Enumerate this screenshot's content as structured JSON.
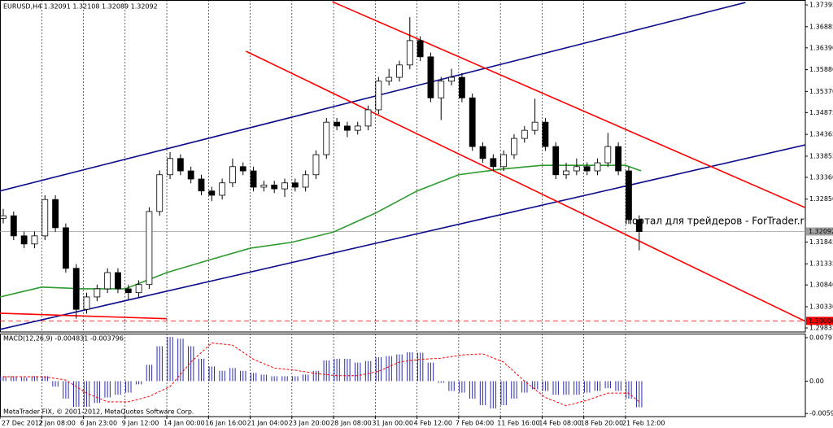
{
  "chart_data": [
    {
      "type": "candlestick",
      "title": "EURUSD,H4  1.32091 1.32108 1.32089 1.32092",
      "x": [
        0,
        4,
        8,
        12,
        16,
        20,
        24,
        28,
        32,
        36,
        40,
        44,
        48,
        52,
        56,
        60,
        64,
        68,
        72,
        76,
        80,
        84,
        88,
        92,
        96,
        100,
        104,
        108,
        112,
        116,
        120,
        124,
        128,
        132,
        136,
        140,
        144,
        148,
        152,
        156,
        160,
        164,
        168,
        172,
        176,
        180,
        184,
        188,
        192,
        196,
        200,
        204,
        208,
        212,
        216,
        220,
        224,
        228,
        232,
        236,
        240,
        244
      ],
      "open": [
        1.324,
        1.3246,
        1.3199,
        1.318,
        1.3199,
        1.3284,
        1.3218,
        1.3123,
        1.3027,
        1.3056,
        1.3075,
        1.3113,
        1.3075,
        1.3066,
        1.3085,
        1.3256,
        1.3342,
        1.338,
        1.3351,
        1.3332,
        1.3304,
        1.3294,
        1.3323,
        1.3361,
        1.3351,
        1.3313,
        1.3318,
        1.3309,
        1.3323,
        1.3313,
        1.3342,
        1.3389,
        1.3465,
        1.3456,
        1.3446,
        1.3456,
        1.3494,
        1.3561,
        1.357,
        1.3599,
        1.3656,
        1.3618,
        1.3522,
        1.3561,
        1.357,
        1.3522,
        1.3408,
        1.338,
        1.3361,
        1.3389,
        1.3427,
        1.3446,
        1.3465,
        1.3408,
        1.3342,
        1.3351,
        1.3361,
        1.3351,
        1.337,
        1.3408,
        1.3351,
        1.3237
      ],
      "high": [
        1.3262,
        1.3256,
        1.3209,
        1.3209,
        1.3294,
        1.3294,
        1.3228,
        1.3133,
        1.3066,
        1.3085,
        1.3123,
        1.3123,
        1.3085,
        1.3095,
        1.3266,
        1.3352,
        1.3395,
        1.339,
        1.3361,
        1.3342,
        1.3314,
        1.3333,
        1.338,
        1.3371,
        1.3361,
        1.3328,
        1.3328,
        1.3333,
        1.3333,
        1.3352,
        1.3399,
        1.3475,
        1.3475,
        1.3466,
        1.3466,
        1.3504,
        1.3571,
        1.359,
        1.3609,
        1.3711,
        1.3666,
        1.3628,
        1.3571,
        1.359,
        1.358,
        1.3532,
        1.3418,
        1.339,
        1.3399,
        1.3437,
        1.3456,
        1.352,
        1.3475,
        1.3418,
        1.337,
        1.338,
        1.3371,
        1.338,
        1.344,
        1.3418,
        1.3361,
        1.3247
      ],
      "low": [
        1.3228,
        1.3189,
        1.317,
        1.317,
        1.3189,
        1.3208,
        1.3113,
        1.3005,
        1.3017,
        1.3046,
        1.3065,
        1.3065,
        1.305,
        1.3056,
        1.3075,
        1.3246,
        1.3332,
        1.3341,
        1.3322,
        1.3294,
        1.328,
        1.3284,
        1.3313,
        1.3341,
        1.3303,
        1.3303,
        1.3299,
        1.329,
        1.3303,
        1.3303,
        1.3332,
        1.3379,
        1.3446,
        1.343,
        1.3436,
        1.3446,
        1.3484,
        1.3551,
        1.356,
        1.3589,
        1.3608,
        1.3512,
        1.347,
        1.3551,
        1.3512,
        1.3398,
        1.337,
        1.3351,
        1.3351,
        1.3379,
        1.3417,
        1.3436,
        1.3398,
        1.3332,
        1.3332,
        1.3341,
        1.3341,
        1.3341,
        1.336,
        1.3341,
        1.3227,
        1.3165
      ],
      "close": [
        1.3246,
        1.3199,
        1.318,
        1.3199,
        1.3284,
        1.3218,
        1.3123,
        1.3027,
        1.3056,
        1.3075,
        1.3113,
        1.3075,
        1.3066,
        1.3085,
        1.3256,
        1.3342,
        1.338,
        1.3351,
        1.3332,
        1.3304,
        1.3294,
        1.3323,
        1.3361,
        1.3351,
        1.3313,
        1.3318,
        1.3309,
        1.3323,
        1.3313,
        1.3342,
        1.3389,
        1.3465,
        1.3456,
        1.3446,
        1.3456,
        1.3494,
        1.3561,
        1.357,
        1.3599,
        1.3656,
        1.3618,
        1.3522,
        1.3561,
        1.357,
        1.3522,
        1.3408,
        1.338,
        1.3361,
        1.3389,
        1.3427,
        1.3446,
        1.3465,
        1.3408,
        1.3342,
        1.3351,
        1.3361,
        1.3351,
        1.337,
        1.3408,
        1.3351,
        1.3237,
        1.3209
      ],
      "color": "#000000",
      "xlim": [
        0,
        309
      ],
      "ylim": [
        1.2974,
        1.3751
      ],
      "yticks": [
        1.37395,
        1.36885,
        {
          "value": 1.3639,
          "label": "1.36390"
        },
        {
          "value": 1.3588,
          "label": "1.35880"
        },
        {
          "value": 1.3537,
          "label": "1.35370"
        },
        1.34875,
        1.34365,
        1.33855,
        {
          "value": 1.3336,
          "label": "1.33360"
        },
        {
          "value": 1.3285,
          "label": "1.32850"
        },
        1.31845,
        1.31335,
        {
          "value": 1.3084,
          "label": "1.30840"
        },
        {
          "value": 1.3033,
          "label": "1.30330"
        },
        1.29835
      ],
      "xticks": [
        {
          "value": 0,
          "label": "27 Dec 2012"
        },
        {
          "value": 16,
          "label": "2 Jan 08:00"
        },
        {
          "value": 32,
          "label": "6 Jan 23:00"
        },
        {
          "value": 48,
          "label": "9 Jan 12:00"
        },
        {
          "value": 64,
          "label": "14 Jan 00:00"
        },
        {
          "value": 80,
          "label": "16 Jan 16:00"
        },
        {
          "value": 96,
          "label": "21 Jan 04:00"
        },
        {
          "value": 112,
          "label": "23 Jan 20:00"
        },
        {
          "value": 128,
          "label": "28 Jan 08:00"
        },
        {
          "value": 144,
          "label": "31 Jan 00:00"
        },
        {
          "value": 160,
          "label": "4 Feb 12:00"
        },
        {
          "value": 176,
          "label": "7 Feb 04:00"
        },
        {
          "value": 192,
          "label": "11 Feb 16:00"
        },
        {
          "value": 208,
          "label": "14 Feb 08:00"
        },
        {
          "value": 224,
          "label": "18 Feb 20:00"
        },
        {
          "value": 240,
          "label": "21 Feb 12:00"
        }
      ],
      "grid": "x",
      "moving_average": {
        "color": "#2e9a2e",
        "x": [
          0,
          16,
          32,
          48,
          64,
          80,
          96,
          112,
          128,
          144,
          160,
          176,
          192,
          208,
          224,
          240,
          246
        ],
        "values": [
          1.3056,
          1.3079,
          1.3075,
          1.3075,
          1.3113,
          1.3142,
          1.317,
          1.3184,
          1.3208,
          1.3252,
          1.3304,
          1.3342,
          1.3355,
          1.3364,
          1.3364,
          1.3364,
          1.3351
        ]
      },
      "trendlines": [
        {
          "color": "#0c0c8c",
          "x": [
            0,
            286
          ],
          "y": [
            1.3304,
            1.37452
          ]
        },
        {
          "color": "#0c0c8c",
          "x": [
            0,
            309
          ],
          "y": [
            1.298,
            1.3412
          ]
        },
        {
          "color": "#ff0000",
          "x": [
            127.5,
            309
          ],
          "y": [
            1.37471,
            1.3265
          ]
        },
        {
          "color": "#ff0000",
          "x": [
            94.4,
            309
          ],
          "y": [
            1.3631,
            1.2999
          ]
        },
        {
          "color": "#ff0000",
          "x": [
            0,
            64
          ],
          "y": [
            1.3018,
            1.3005
          ]
        }
      ],
      "price_lines": [
        {
          "value": 1.32092,
          "label": "1.32092",
          "color": "#a0a0a0"
        },
        {
          "value": 1.3,
          "label": "1.30000",
          "color": "#ff0000"
        }
      ],
      "watermark": "Портал для трейдеров - ForTrader.ru",
      "footer": "MetaTrader FIX, © 2001-2012, MetaQuotes Software Corp."
    },
    {
      "type": "macd",
      "title": "MACD(12,26,9) -0.004831 -0.003796",
      "xlim": [
        0,
        309
      ],
      "ylim": [
        -0.0065,
        0.008714
      ],
      "yticks": [
        0.007975,
        {
          "value": 0,
          "label": "0.00"
        },
        -0.005936
      ],
      "histogram": {
        "color": "#2b2bb0",
        "x": [
          0,
          4,
          8,
          12,
          16,
          20,
          24,
          28,
          32,
          36,
          40,
          44,
          48,
          52,
          56,
          60,
          64,
          68,
          72,
          76,
          80,
          84,
          88,
          92,
          96,
          100,
          104,
          108,
          112,
          116,
          120,
          124,
          128,
          132,
          136,
          140,
          144,
          148,
          152,
          156,
          160,
          164,
          168,
          172,
          176,
          180,
          184,
          188,
          192,
          196,
          200,
          204,
          208,
          212,
          216,
          220,
          224,
          228,
          232,
          236,
          240,
          244
        ],
        "values": [
          0.0009,
          0.0009,
          0.0007,
          0.0009,
          0.0009,
          -0.001,
          -0.0032,
          -0.0047,
          -0.0047,
          -0.004,
          -0.003,
          -0.0025,
          -0.0021,
          -0.0006,
          0.003,
          0.0064,
          0.0081,
          0.0078,
          0.0064,
          0.0041,
          0.0027,
          0.0019,
          0.0024,
          0.0019,
          0.0015,
          0.0012,
          0.0009,
          0.0009,
          0.0009,
          0.0012,
          0.0019,
          0.0038,
          0.0041,
          0.0041,
          0.0034,
          0.0037,
          0.0044,
          0.0046,
          0.0049,
          0.0053,
          0.0052,
          0.0034,
          -0.0003,
          -0.0018,
          -0.0021,
          -0.0032,
          -0.0044,
          -0.005,
          -0.0044,
          -0.0032,
          -0.0021,
          -0.0015,
          -0.0018,
          -0.0025,
          -0.0025,
          -0.0025,
          -0.0021,
          -0.0018,
          -0.0013,
          -0.0018,
          -0.0032,
          -0.0048
        ]
      },
      "signal": {
        "color": "#ff0000",
        "x": [
          0,
          8,
          16,
          24,
          32,
          40,
          48,
          56,
          64,
          72,
          80,
          88,
          96,
          104,
          112,
          120,
          128,
          136,
          144,
          152,
          160,
          168,
          176,
          184,
          192,
          200,
          208,
          216,
          224,
          232,
          240,
          244
        ],
        "values": [
          0.0008,
          0.0008,
          0.0008,
          0.0002,
          -0.0022,
          -0.0038,
          -0.0038,
          -0.0028,
          -0.001,
          0.0035,
          0.007,
          0.0066,
          0.004,
          0.0024,
          0.002,
          0.0014,
          0.001,
          0.001,
          0.0018,
          0.0035,
          0.004,
          0.0042,
          0.0048,
          0.005,
          0.0035,
          0.0,
          -0.003,
          -0.0045,
          -0.0035,
          -0.0022,
          -0.0022,
          -0.0038
        ]
      }
    }
  ]
}
